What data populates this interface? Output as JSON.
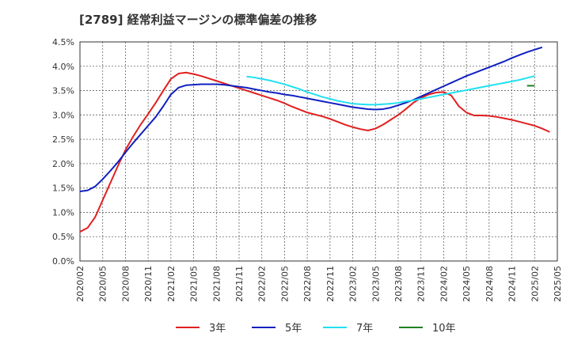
{
  "chart_data": {
    "type": "line",
    "title": "[2789] 経常利益マージンの標準偏差の推移",
    "xlabel": "",
    "ylabel": "",
    "ylim": [
      0,
      0.045
    ],
    "y_ticks": [
      0,
      0.005,
      0.01,
      0.015,
      0.02,
      0.025,
      0.03,
      0.035,
      0.04,
      0.045
    ],
    "y_tick_labels": [
      "0.0%",
      "0.5%",
      "1.0%",
      "1.5%",
      "2.0%",
      "2.5%",
      "3.0%",
      "3.5%",
      "4.0%",
      "4.5%"
    ],
    "x_tick_labels": [
      "2020/02",
      "2020/05",
      "2020/08",
      "2020/11",
      "2021/02",
      "2021/05",
      "2021/08",
      "2021/11",
      "2022/02",
      "2022/05",
      "2022/08",
      "2022/11",
      "2023/02",
      "2023/05",
      "2023/08",
      "2023/11",
      "2024/02",
      "2024/05",
      "2024/08",
      "2024/11",
      "2025/02",
      "2025/05"
    ],
    "x_start": "2020/02",
    "grid": true,
    "legend_position": "bottom",
    "series": [
      {
        "name": "3年",
        "color": "#e02020",
        "start": "2020/02",
        "values": [
          0.006,
          0.0068,
          0.009,
          0.0125,
          0.016,
          0.0195,
          0.0228,
          0.0255,
          0.028,
          0.0302,
          0.0325,
          0.035,
          0.0374,
          0.0385,
          0.0387,
          0.0384,
          0.038,
          0.0375,
          0.037,
          0.0365,
          0.036,
          0.0355,
          0.035,
          0.0345,
          0.034,
          0.0335,
          0.033,
          0.0324,
          0.0317,
          0.0311,
          0.0305,
          0.0301,
          0.0297,
          0.0292,
          0.0286,
          0.028,
          0.0275,
          0.0271,
          0.0268,
          0.0272,
          0.028,
          0.029,
          0.03,
          0.0312,
          0.0325,
          0.0335,
          0.0342,
          0.0346,
          0.0347,
          0.034,
          0.0318,
          0.0305,
          0.0299,
          0.0299,
          0.0298,
          0.0296,
          0.0293,
          0.029,
          0.0286,
          0.0282,
          0.0278,
          0.0272,
          0.0265
        ]
      },
      {
        "name": "5年",
        "color": "#1020c0",
        "start": "2020/02",
        "values": [
          0.0143,
          0.0145,
          0.0153,
          0.0168,
          0.0185,
          0.0203,
          0.0223,
          0.0242,
          0.026,
          0.0278,
          0.0296,
          0.0318,
          0.0342,
          0.0356,
          0.0361,
          0.0362,
          0.0363,
          0.0363,
          0.0363,
          0.0362,
          0.036,
          0.0358,
          0.0356,
          0.0353,
          0.035,
          0.0347,
          0.0345,
          0.0342,
          0.034,
          0.0337,
          0.0334,
          0.0331,
          0.0328,
          0.0325,
          0.0322,
          0.0319,
          0.0316,
          0.0314,
          0.0312,
          0.0311,
          0.0312,
          0.0315,
          0.032,
          0.0325,
          0.0331,
          0.0338,
          0.0345,
          0.0352,
          0.0359,
          0.0366,
          0.0373,
          0.038,
          0.0386,
          0.0392,
          0.0398,
          0.0404,
          0.041,
          0.0417,
          0.0423,
          0.0429,
          0.0434,
          0.0439
        ]
      },
      {
        "name": "7年",
        "color": "#20e0f0",
        "start": "2021/12",
        "values": [
          0.0379,
          0.0377,
          0.0374,
          0.0371,
          0.0367,
          0.0363,
          0.0358,
          0.0353,
          0.0347,
          0.0342,
          0.0337,
          0.0333,
          0.0329,
          0.0326,
          0.0323,
          0.0322,
          0.0321,
          0.0321,
          0.0322,
          0.0323,
          0.0325,
          0.0328,
          0.033,
          0.0333,
          0.0336,
          0.0339,
          0.0342,
          0.0345,
          0.0348,
          0.0351,
          0.0354,
          0.0357,
          0.036,
          0.0363,
          0.0366,
          0.0369,
          0.0372,
          0.0376,
          0.038
        ]
      },
      {
        "name": "10年",
        "color": "#208020",
        "start": "2025/01",
        "values": [
          0.036,
          0.036
        ]
      }
    ]
  }
}
